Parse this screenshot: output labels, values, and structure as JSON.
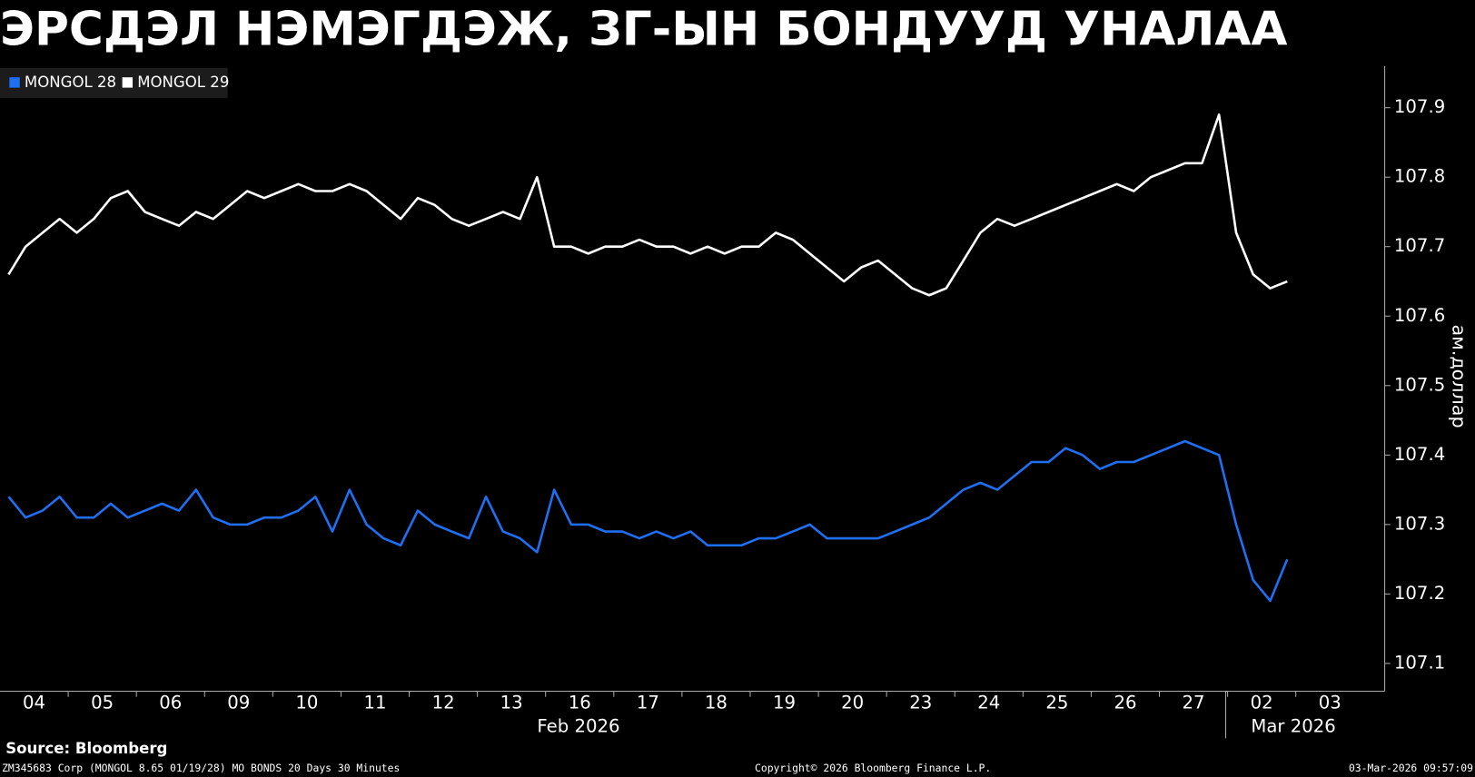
{
  "chart_data": {
    "type": "line",
    "title": "ЭРСДЭЛ НЭМЭГДЭЖ, ЗГ-ЫН БОНДУУД УНАЛАА",
    "y_label": "ам.доллар",
    "categories": [
      "04",
      null,
      null,
      null,
      "05",
      null,
      null,
      null,
      "06",
      null,
      null,
      null,
      "09",
      null,
      null,
      null,
      "10",
      null,
      null,
      null,
      "11",
      null,
      null,
      null,
      "12",
      null,
      null,
      null,
      "13",
      null,
      null,
      null,
      "16",
      null,
      null,
      null,
      "17",
      null,
      null,
      null,
      "18",
      null,
      null,
      null,
      "19",
      null,
      null,
      null,
      "20",
      null,
      null,
      null,
      "23",
      null,
      null,
      null,
      "24",
      null,
      null,
      null,
      "25",
      null,
      null,
      null,
      "26",
      null,
      null,
      null,
      "27",
      null,
      null,
      null,
      "02",
      null,
      null,
      null,
      "03",
      null,
      null,
      null
    ],
    "x_group_labels": [
      "Feb 2026",
      "Mar 2026"
    ],
    "series": [
      {
        "name": "MONGOL 28",
        "color": "#1f6ff2",
        "values": [
          107.34,
          107.31,
          107.32,
          107.34,
          107.31,
          107.31,
          107.33,
          107.31,
          107.32,
          107.33,
          107.32,
          107.35,
          107.31,
          107.3,
          107.3,
          107.31,
          107.31,
          107.32,
          107.34,
          107.29,
          107.35,
          107.3,
          107.28,
          107.27,
          107.32,
          107.3,
          107.29,
          107.28,
          107.34,
          107.29,
          107.28,
          107.26,
          107.35,
          107.3,
          107.3,
          107.29,
          107.29,
          107.28,
          107.29,
          107.28,
          107.29,
          107.27,
          107.27,
          107.27,
          107.28,
          107.28,
          107.29,
          107.3,
          107.28,
          107.28,
          107.28,
          107.28,
          107.29,
          107.3,
          107.31,
          107.33,
          107.35,
          107.36,
          107.35,
          107.37,
          107.39,
          107.39,
          107.41,
          107.4,
          107.38,
          107.39,
          107.39,
          107.4,
          107.41,
          107.42,
          107.41,
          107.4,
          107.3,
          107.22,
          107.19,
          107.25,
          null,
          null,
          null,
          null
        ]
      },
      {
        "name": "MONGOL 29",
        "color": "#ffffff",
        "values": [
          107.66,
          107.7,
          107.72,
          107.74,
          107.72,
          107.74,
          107.77,
          107.78,
          107.75,
          107.74,
          107.73,
          107.75,
          107.74,
          107.76,
          107.78,
          107.77,
          107.78,
          107.79,
          107.78,
          107.78,
          107.79,
          107.78,
          107.76,
          107.74,
          107.77,
          107.76,
          107.74,
          107.73,
          107.74,
          107.75,
          107.74,
          107.8,
          107.7,
          107.7,
          107.69,
          107.7,
          107.7,
          107.71,
          107.7,
          107.7,
          107.69,
          107.7,
          107.69,
          107.7,
          107.7,
          107.72,
          107.71,
          107.69,
          107.67,
          107.65,
          107.67,
          107.68,
          107.66,
          107.64,
          107.63,
          107.64,
          107.68,
          107.72,
          107.74,
          107.73,
          107.74,
          107.75,
          107.76,
          107.77,
          107.78,
          107.79,
          107.78,
          107.8,
          107.81,
          107.82,
          107.82,
          107.89,
          107.72,
          107.66,
          107.64,
          107.65,
          null,
          null,
          null,
          null
        ]
      }
    ],
    "ylim": [
      107.06,
      107.96
    ],
    "yticks": [
      107.1,
      107.2,
      107.3,
      107.4,
      107.5,
      107.6,
      107.7,
      107.8,
      107.9
    ],
    "grid": false,
    "source": "Source: Bloomberg",
    "footer_left": "ZM345683 Corp (MONGOL 8.65 01/19/28) MO BONDS 20 Days 30 Minutes",
    "footer_center": "Copyright© 2026 Bloomberg Finance L.P.",
    "footer_right": "03-Mar-2026 09:57:09"
  }
}
